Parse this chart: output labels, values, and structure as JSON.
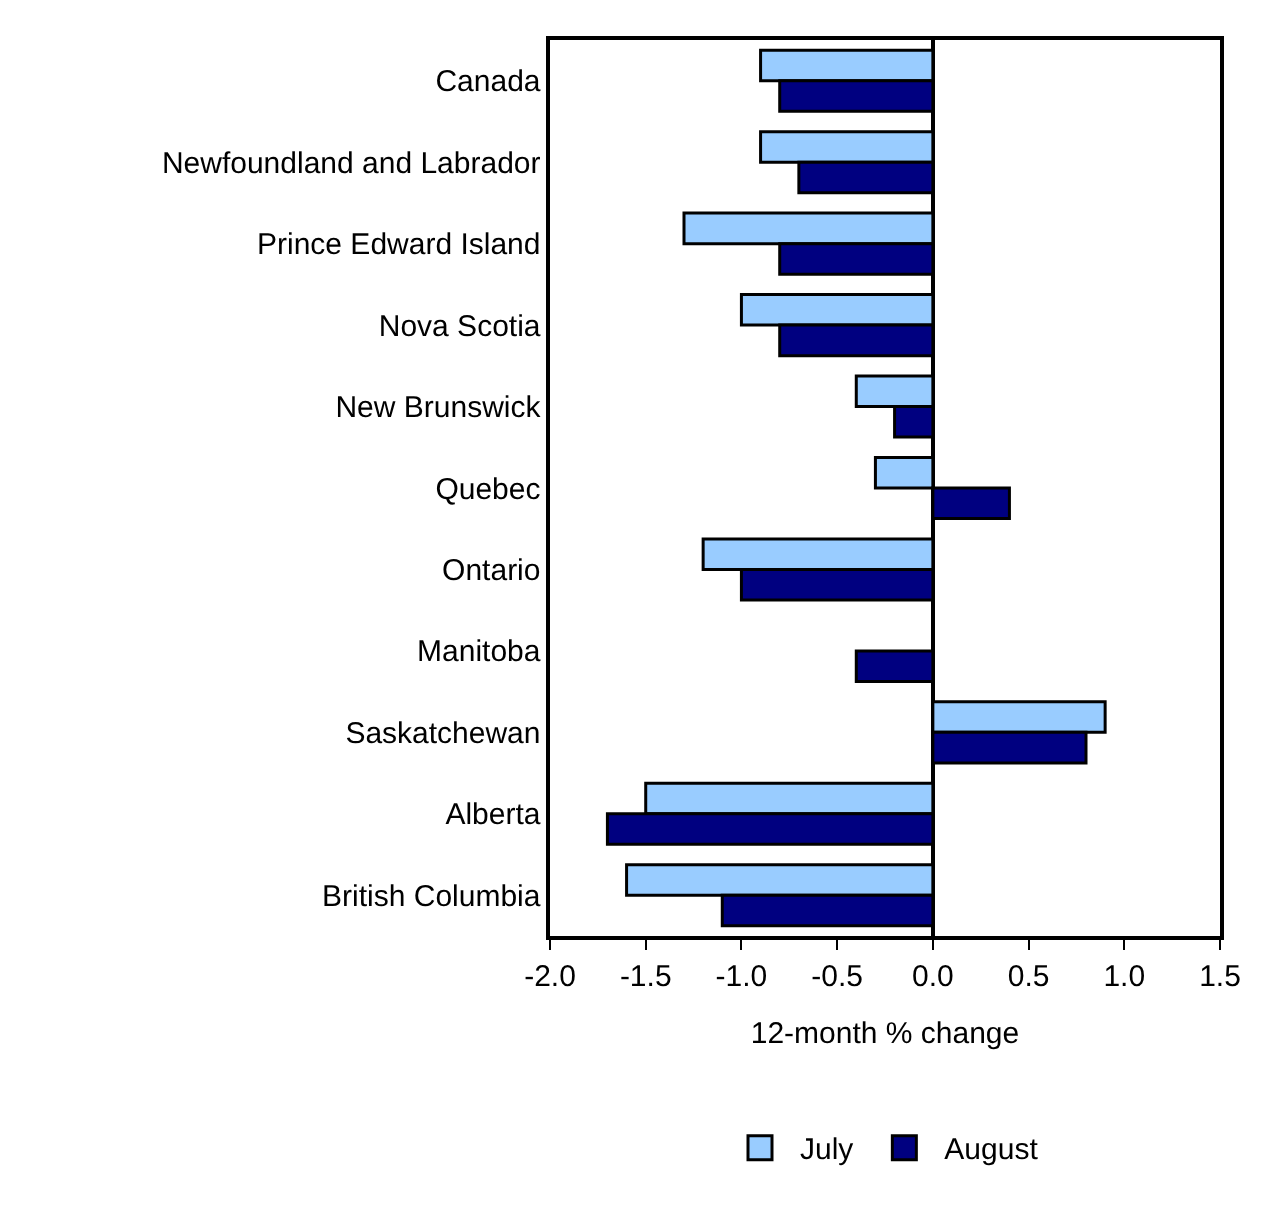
{
  "chart_data": {
    "type": "bar",
    "orientation": "horizontal",
    "xlabel": "12-month % change",
    "categories": [
      "Canada",
      "Newfoundland and Labrador",
      "Prince Edward Island",
      "Nova Scotia",
      "New Brunswick",
      "Quebec",
      "Ontario",
      "Manitoba",
      "Saskatchewan",
      "Alberta",
      "British Columbia"
    ],
    "series": [
      {
        "name": "July",
        "color": "#99ccff",
        "values": [
          -0.9,
          -0.9,
          -1.3,
          -1.0,
          -0.4,
          -0.3,
          -1.2,
          null,
          0.9,
          -1.5,
          -1.6
        ]
      },
      {
        "name": "August",
        "color": "#000080",
        "values": [
          -0.8,
          -0.7,
          -0.8,
          -0.8,
          -0.2,
          0.4,
          -1.0,
          -0.4,
          0.8,
          -1.7,
          -1.1
        ]
      }
    ],
    "xlim": [
      -2.0,
      1.5
    ],
    "xticks": [
      {
        "value": -2.0,
        "label": "-2.0"
      },
      {
        "value": -1.5,
        "label": "-1.5"
      },
      {
        "value": -1.0,
        "label": "-1.0"
      },
      {
        "value": -0.5,
        "label": "-0.5"
      },
      {
        "value": 0.0,
        "label": "0.0"
      },
      {
        "value": 0.5,
        "label": "0.5"
      },
      {
        "value": 1.0,
        "label": "1.0"
      },
      {
        "value": 1.5,
        "label": "1.5"
      }
    ],
    "legend": "bottom"
  }
}
